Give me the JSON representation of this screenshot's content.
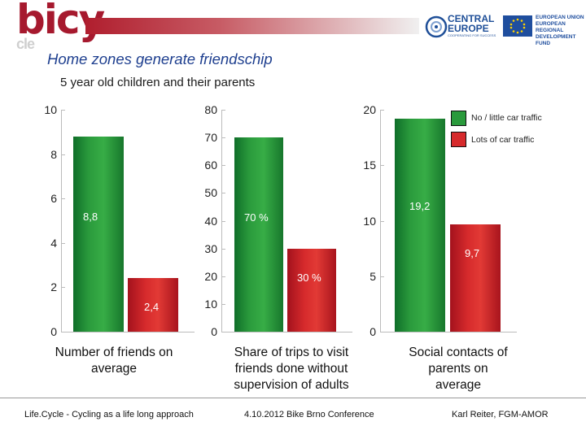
{
  "logo": {
    "text": "bicy",
    "sub": "cle"
  },
  "partners": {
    "central_title": "CENTRAL EUROPE",
    "central_sub": "COOPERATING FOR SUCCESS",
    "eu_text": "EUROPEAN UNION EUROPEAN REGIONAL DEVELOPMENT FUND",
    "accent_color": "#a6192e",
    "blue_color": "#1f4e9e"
  },
  "title": "Home zones generate friendschip",
  "subtitle": "5 year old children and their parents",
  "legend": [
    {
      "label": "No / little car traffic",
      "color": "#2a9a3c"
    },
    {
      "label": "Lots of car traffic",
      "color": "#d62a2c"
    }
  ],
  "chart_data": [
    {
      "type": "bar",
      "title": "Number of friends on average",
      "categories": [
        "No / little car traffic",
        "Lots of car traffic"
      ],
      "values": [
        8.8,
        2.4
      ],
      "value_labels": [
        "8,8",
        "2,4"
      ],
      "ylim": [
        0,
        10
      ],
      "yticks": [
        "0",
        "2",
        "4",
        "6",
        "8",
        "10"
      ],
      "caption_lines": [
        "Number of friends on",
        "average"
      ]
    },
    {
      "type": "bar",
      "title": "Share of trips to visit friends done without supervision of adults",
      "categories": [
        "No / little car traffic",
        "Lots of car traffic"
      ],
      "values": [
        70,
        30
      ],
      "value_labels": [
        "70 %",
        "30 %"
      ],
      "ylim": [
        0,
        80
      ],
      "yticks": [
        "0",
        "10",
        "20",
        "30",
        "40",
        "50",
        "60",
        "70",
        "80"
      ],
      "caption_lines": [
        "Share of trips to visit",
        "friends done without",
        "supervision of adults"
      ]
    },
    {
      "type": "bar",
      "title": "Social contacts of parents on average",
      "categories": [
        "No / little car traffic",
        "Lots of car traffic"
      ],
      "values": [
        19.2,
        9.7
      ],
      "value_labels": [
        "19,2",
        "9,7"
      ],
      "ylim": [
        0,
        20
      ],
      "yticks": [
        "0",
        "5",
        "10",
        "15",
        "20"
      ],
      "caption_lines": [
        "Social contacts of",
        "parents on",
        "average"
      ]
    }
  ],
  "footer": {
    "left": "Life.Cycle - Cycling as a life long approach",
    "center": "4.10.2012 Bike Brno Conference",
    "right": "Karl Reiter, FGM-AMOR"
  }
}
